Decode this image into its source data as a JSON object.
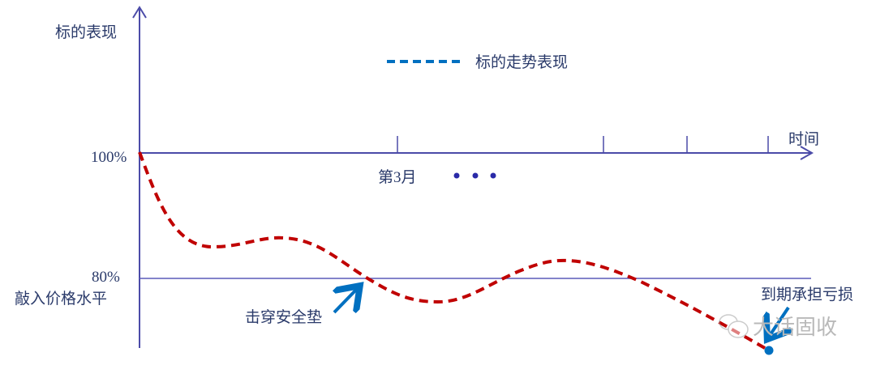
{
  "y_axis_label": "标的表现",
  "x_axis_label": "时间",
  "y_ticks": {
    "high": "100%",
    "low": "80%"
  },
  "barrier_label": "敲入价格水平",
  "x_tick_label": "第3月",
  "legend": {
    "label": "标的走势表现",
    "color": "#0070c0"
  },
  "annotations": {
    "breach": "击穿安全垫",
    "loss": "到期承担亏损"
  },
  "watermark": "大话固收",
  "colors": {
    "axis": "#4b4ba8",
    "curve": "#c00000",
    "arrow": "#0070c0",
    "text": "#2a3a6a"
  }
}
